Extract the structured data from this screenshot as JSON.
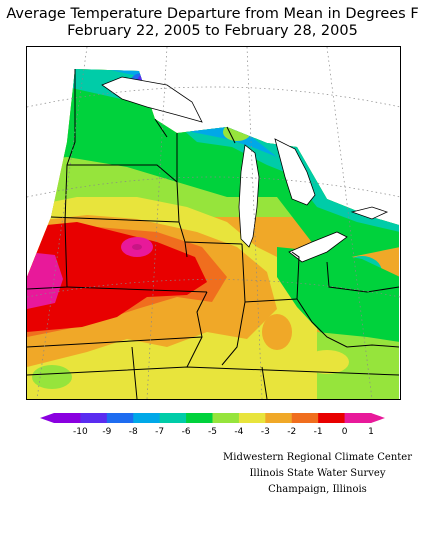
{
  "title_line1": "Average Temperature Departure from Mean in Degrees F",
  "title_line2": "February 22, 2005 to February 28, 2005",
  "legend": {
    "ticks": [
      "-10",
      "-9",
      "-8",
      "-7",
      "-6",
      "-5",
      "-4",
      "-3",
      "-2",
      "-1",
      "0",
      "1"
    ],
    "colors": [
      "#8a00e0",
      "#5a2cf0",
      "#1e6cf0",
      "#00a8e8",
      "#00cca8",
      "#00d23c",
      "#96e43c",
      "#e8e43c",
      "#f0a828",
      "#f06e1e",
      "#e80000",
      "#e8199a"
    ]
  },
  "credits": {
    "line1": "Midwestern Regional Climate Center",
    "line2": "Illinois State Water Survey",
    "line3": "Champaign, Illinois"
  }
}
